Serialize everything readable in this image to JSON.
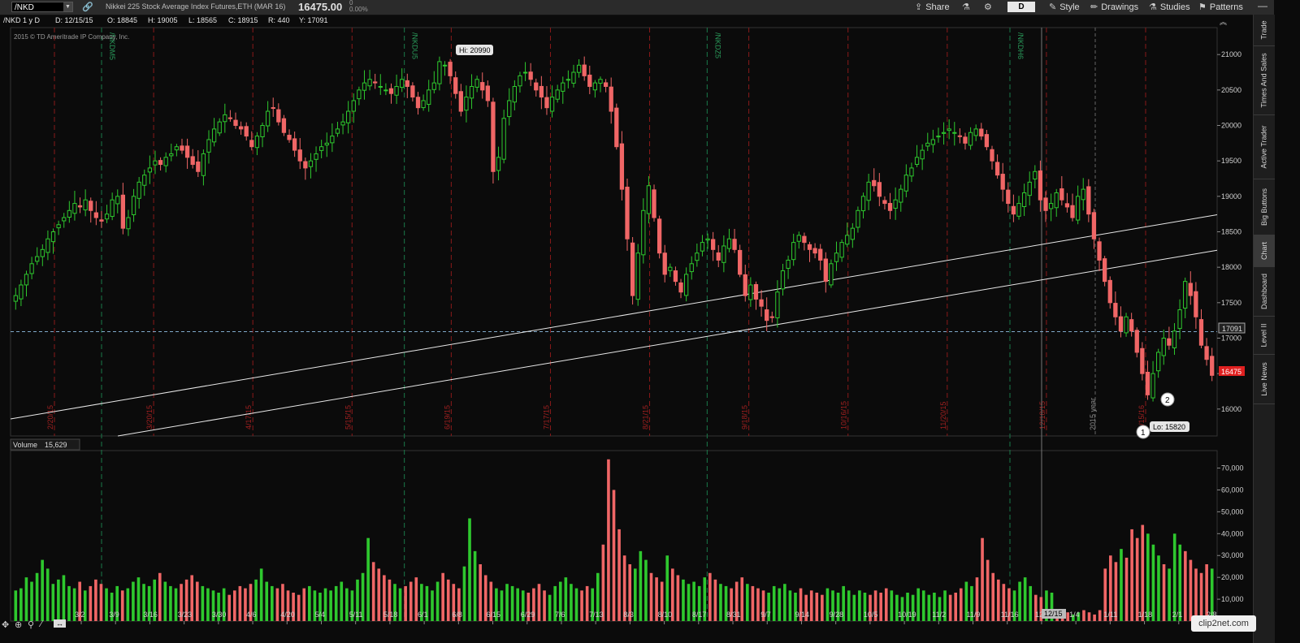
{
  "toolbar": {
    "symbol": "/NKD",
    "description": "Nikkei 225 Stock Average Index Futures,ETH (MAR 16)",
    "last_price": "16475.00",
    "change": "0",
    "change_pct": "0.00%",
    "share_label": "Share",
    "aggregation_label": "D",
    "style_label": "Style",
    "drawings_label": "Drawings",
    "studies_label": "Studies",
    "patterns_label": "Patterns"
  },
  "subbar": {
    "title": "/NKD 1 y D",
    "date": "D: 12/15/15",
    "open": "O: 18845",
    "high": "H: 19005",
    "low": "L: 18565",
    "close": "C: 18915",
    "range": "R: 440",
    "ylabel": "Y: 17091"
  },
  "copyright": "2015 © TD Ameritrade IP Company, Inc.",
  "right_tabs": [
    "Trade",
    "Times And Sales",
    "Active Trader",
    "Big Buttons",
    "Chart",
    "Dashboard",
    "Level II",
    "Live News"
  ],
  "volume_header": {
    "label": "Volume",
    "value": "15,629"
  },
  "annotations": {
    "hi_label": "Hi: 20990",
    "lo_label": "Lo: 15820",
    "marker1": "1",
    "marker2": "2",
    "last_price_tag": "16475",
    "cursor_price_tag": "17091",
    "cursor_date_tag": "12/15",
    "year_label": "2015 year"
  },
  "watermark": "clip2net.com",
  "colors": {
    "up": "#2ec82e",
    "down": "#f06666",
    "grid_red": "#8a1a1a",
    "grid_green": "#1a7a4a",
    "background": "#0b0b0b"
  },
  "chart_data": [
    {
      "type": "candlestick",
      "y_ticks": [
        16000,
        16500,
        17000,
        17500,
        18000,
        18500,
        19000,
        19500,
        20000,
        20500,
        21000
      ],
      "ylim": [
        15620,
        21380
      ],
      "x_ticks": [
        "3/2",
        "3/9",
        "3/16",
        "3/23",
        "3/30",
        "4/6",
        "4/20",
        "5/4",
        "5/11",
        "5/18",
        "6/1",
        "6/8",
        "6/15",
        "6/29",
        "7/6",
        "7/13",
        "8/3",
        "8/10",
        "8/17",
        "8/31",
        "9/7",
        "9/14",
        "9/28",
        "10/5",
        "10/19",
        "11/2",
        "11/9",
        "11/16",
        "12/7",
        "1/4",
        "1/11",
        "1/18",
        "2/1",
        "2/8"
      ],
      "red_verticals": [
        "2/20/15",
        "3/20/15",
        "4/17/15",
        "5/15/15",
        "6/19/15",
        "7/17/15",
        "8/21/15",
        "9/18/15",
        "10/16/15",
        "11/20/15",
        "12/18/15",
        "1/15/16"
      ],
      "green_verticals": [
        "/NKDM5",
        "/NKDU5",
        "/NKDZ5",
        "/NKDH6"
      ],
      "series_close": [
        17600,
        17750,
        17900,
        18050,
        18150,
        18250,
        18400,
        18500,
        18600,
        18700,
        18800,
        18900,
        18850,
        18950,
        18800,
        18700,
        18650,
        18750,
        18950,
        19000,
        18550,
        18700,
        19000,
        19200,
        19300,
        19400,
        19500,
        19450,
        19550,
        19600,
        19700,
        19650,
        19550,
        19450,
        19350,
        19600,
        19800,
        19950,
        20050,
        20150,
        20100,
        20000,
        19950,
        19850,
        19700,
        19850,
        20000,
        20200,
        20250,
        20050,
        19900,
        19800,
        19650,
        19500,
        19400,
        19500,
        19600,
        19700,
        19750,
        19850,
        19950,
        20050,
        20200,
        20350,
        20500,
        20600,
        20650,
        20600,
        20550,
        20500,
        20450,
        20550,
        20650,
        20550,
        20400,
        20250,
        20350,
        20500,
        20600,
        20900,
        20850,
        20700,
        20450,
        20200,
        20400,
        20550,
        20650,
        20500,
        20350,
        19350,
        19550,
        20100,
        20350,
        20550,
        20700,
        20750,
        20650,
        20500,
        20400,
        20250,
        20400,
        20500,
        20600,
        20650,
        20750,
        20850,
        20700,
        20550,
        20600,
        20650,
        20550,
        20200,
        19700,
        19100,
        18400,
        17600,
        18200,
        18800,
        19150,
        18700,
        18200,
        17900,
        18000,
        17800,
        17650,
        17900,
        18050,
        18200,
        18350,
        18400,
        18250,
        18100,
        18300,
        18400,
        18250,
        17900,
        17600,
        17750,
        17550,
        17450,
        17250,
        17300,
        17650,
        17950,
        18100,
        18350,
        18450,
        18350,
        18250,
        18200,
        18100,
        17800,
        18050,
        18200,
        18350,
        18450,
        18550,
        18800,
        19000,
        19200,
        19150,
        19000,
        18900,
        18800,
        18950,
        19100,
        19300,
        19400,
        19550,
        19650,
        19750,
        19800,
        19850,
        19900,
        19950,
        19900,
        19850,
        19750,
        19900,
        19950,
        19850,
        19700,
        19500,
        19300,
        19100,
        18900,
        18750,
        18900,
        19050,
        19200,
        19350,
        18950,
        18800,
        18900,
        19050,
        18950,
        18850,
        18700,
        19000,
        19100,
        18750,
        18400,
        18100,
        17800,
        17500,
        17300,
        17100,
        17300,
        17100,
        16800,
        16500,
        16200,
        16500,
        16800,
        17000,
        16900,
        17100,
        17400,
        17800,
        17600,
        17300,
        16900,
        16700,
        16475
      ],
      "hi": 20990,
      "lo": 15820
    },
    {
      "type": "bar",
      "title": "Volume",
      "y_ticks": [
        10000,
        20000,
        30000,
        40000,
        50000,
        60000,
        70000
      ],
      "ylim": [
        0,
        78000
      ],
      "values": [
        14000,
        15000,
        20000,
        18000,
        22000,
        28000,
        24000,
        17000,
        19000,
        21000,
        16000,
        15000,
        18000,
        14000,
        16000,
        19000,
        17000,
        15000,
        13000,
        16000,
        14000,
        15000,
        18000,
        20000,
        17000,
        16000,
        19000,
        22000,
        18000,
        16000,
        15000,
        17000,
        19000,
        21000,
        18000,
        16000,
        15000,
        14000,
        13000,
        15000,
        12000,
        14000,
        16000,
        15000,
        17000,
        19000,
        24000,
        18000,
        16000,
        15000,
        17000,
        14000,
        13000,
        12000,
        15000,
        16000,
        14000,
        13000,
        15000,
        14000,
        16000,
        18000,
        15000,
        14000,
        19000,
        22000,
        38000,
        27000,
        24000,
        21000,
        19000,
        17000,
        15000,
        16000,
        18000,
        20000,
        17000,
        16000,
        14000,
        18000,
        22000,
        19000,
        17000,
        15000,
        25000,
        47000,
        32000,
        26000,
        21000,
        18000,
        15000,
        14000,
        17000,
        16000,
        15000,
        14000,
        13000,
        15000,
        17000,
        14000,
        12000,
        16000,
        18000,
        20000,
        17000,
        15000,
        14000,
        16000,
        15000,
        22000,
        35000,
        74000,
        60000,
        42000,
        30000,
        26000,
        24000,
        32000,
        28000,
        22000,
        20000,
        18000,
        30000,
        24000,
        21000,
        19000,
        17000,
        18000,
        16000,
        20000,
        22000,
        19000,
        17000,
        16000,
        15000,
        18000,
        20000,
        17000,
        16000,
        15000,
        14000,
        13000,
        16000,
        15000,
        17000,
        14000,
        13000,
        15000,
        12000,
        14000,
        13000,
        12000,
        15000,
        14000,
        13000,
        16000,
        14000,
        12000,
        14000,
        13000,
        12000,
        14000,
        13000,
        15000,
        14000,
        12000,
        11000,
        13000,
        12000,
        15000,
        14000,
        12000,
        13000,
        11000,
        14000,
        12000,
        13000,
        15000,
        18000,
        16000,
        20000,
        38000,
        28000,
        22000,
        19000,
        17000,
        15000,
        14000,
        18000,
        20000,
        16000,
        12000,
        11000,
        14000,
        13000,
        4000,
        3000,
        4000,
        3000,
        4000,
        5000,
        4000,
        3000,
        5000,
        24000,
        30000,
        27000,
        33000,
        29000,
        42000,
        38000,
        44000,
        40000,
        35000,
        30000,
        26000,
        24000,
        40000,
        35000,
        32000,
        28000,
        24000,
        22000,
        26000,
        24000
      ],
      "cursor_value": "15,629"
    }
  ]
}
